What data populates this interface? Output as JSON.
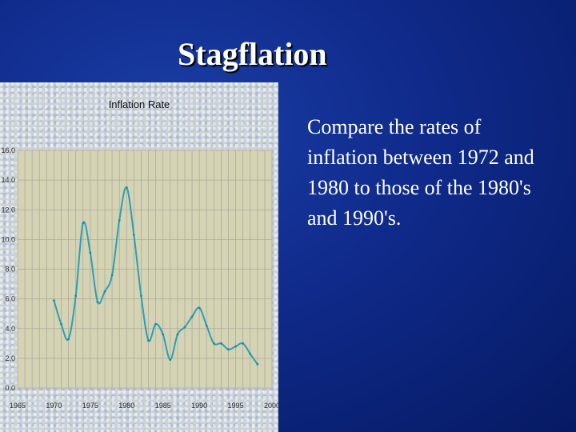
{
  "slide": {
    "title": "Stagflation",
    "body_text": "Compare the rates of inflation between 1972 and 1980 to those of the 1980's and 1990's."
  },
  "colors": {
    "background": "#0f2a8a",
    "plot_area": "#d4d3b4",
    "series_line": "#2aa0b5",
    "text": "#ffffff"
  },
  "chart_data": {
    "type": "line",
    "title": "Inflation Rate",
    "xlabel": "",
    "ylabel": "",
    "xlim": [
      1965,
      2000
    ],
    "ylim": [
      0,
      16
    ],
    "grid": true,
    "x_ticks": [
      "1965",
      "1970",
      "1975",
      "1980",
      "1985",
      "1990",
      "1995",
      "2000"
    ],
    "y_ticks": [
      "0.0",
      "2.0",
      "4.0",
      "6.0",
      "8.0",
      "10.0",
      "12.0",
      "14.0",
      "16.0"
    ],
    "series": [
      {
        "x": [
          1970,
          1971,
          1972,
          1973,
          1974,
          1975,
          1976,
          1977,
          1978,
          1979,
          1980,
          1981,
          1982,
          1983,
          1984,
          1985,
          1986,
          1987,
          1988,
          1989,
          1990,
          1991,
          1992,
          1993,
          1994,
          1995,
          1996,
          1997,
          1998
        ],
        "values": [
          5.9,
          4.3,
          3.3,
          6.2,
          11.1,
          9.1,
          5.8,
          6.5,
          7.6,
          11.3,
          13.5,
          10.3,
          6.2,
          3.2,
          4.3,
          3.6,
          1.9,
          3.6,
          4.1,
          4.8,
          5.4,
          4.2,
          3.0,
          3.0,
          2.6,
          2.8,
          3.0,
          2.3,
          1.6
        ]
      }
    ]
  }
}
